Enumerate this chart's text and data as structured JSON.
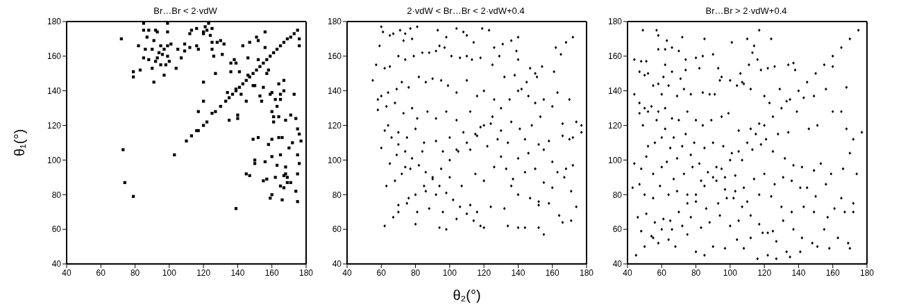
{
  "chart_data": [
    {
      "type": "scatter",
      "title": "Br…Br < 2·vdW",
      "ylabel": "θ₁(°)",
      "color": "#000000",
      "marker": "square",
      "xlim": [
        40,
        180
      ],
      "ylim": [
        40,
        180
      ],
      "xticks": [
        40,
        60,
        80,
        100,
        120,
        140,
        160,
        180
      ],
      "yticks": [
        40,
        60,
        80,
        100,
        120,
        140,
        160,
        180
      ],
      "x": [
        110,
        113,
        117,
        120,
        122,
        125,
        127,
        130,
        133,
        135,
        137,
        139,
        141,
        143,
        145,
        147,
        149,
        151,
        153,
        155,
        157,
        159,
        161,
        163,
        165,
        167,
        169,
        171,
        173,
        175,
        85,
        99,
        72,
        85,
        88,
        92,
        93,
        99,
        87,
        91,
        82,
        86,
        90,
        95,
        97,
        99,
        101,
        94,
        93,
        85,
        88,
        92,
        96,
        99,
        100,
        98,
        95,
        90,
        83,
        79,
        79,
        91,
        97,
        104,
        105,
        107,
        109,
        109,
        112,
        112,
        113,
        116,
        116,
        117,
        120,
        121,
        122,
        123,
        125,
        124,
        120,
        125,
        125,
        126,
        128,
        130,
        131,
        132,
        127,
        117,
        120,
        120,
        116,
        103,
        73,
        74,
        79,
        138,
        139,
        141,
        143,
        136,
        136,
        139,
        134,
        135,
        140,
        140,
        142,
        145,
        146,
        146,
        147,
        149,
        150,
        151,
        152,
        152,
        153,
        154,
        155,
        156,
        156,
        157,
        158,
        159,
        160,
        160,
        161,
        162,
        161,
        164,
        163,
        164,
        165,
        165,
        167,
        167,
        168,
        171,
        173,
        174,
        175,
        176,
        172,
        170,
        175,
        176,
        177,
        176,
        176,
        174,
        175,
        166,
        164,
        160,
        158,
        156,
        150,
        150,
        149,
        145,
        147,
        155,
        157,
        159,
        160,
        162,
        163,
        165,
        165,
        168,
        168,
        169,
        167,
        169,
        171,
        167,
        166,
        139,
        160,
        175,
        152
      ],
      "values": [
        111,
        114,
        117,
        120,
        122,
        127,
        128,
        131,
        134,
        136,
        138,
        140,
        142,
        144,
        146,
        148,
        150,
        152,
        154,
        156,
        158,
        160,
        162,
        164,
        166,
        168,
        170,
        171,
        173,
        175,
        179,
        179,
        170,
        175,
        175,
        175,
        174,
        174,
        171,
        169,
        166,
        164,
        164,
        166,
        164,
        166,
        167,
        162,
        159,
        159,
        158,
        157,
        161,
        160,
        157,
        155,
        155,
        153,
        152,
        151,
        148,
        145,
        149,
        153,
        164,
        159,
        167,
        163,
        165,
        173,
        175,
        176,
        166,
        164,
        174,
        177,
        175,
        179,
        176,
        172,
        173,
        168,
        164,
        160,
        168,
        169,
        161,
        167,
        150,
        128,
        145,
        134,
        117,
        103,
        106,
        87,
        79,
        158,
        156,
        151,
        166,
        156,
        151,
        141,
        139,
        123,
        126,
        124,
        138,
        134,
        149,
        159,
        168,
        143,
        143,
        171,
        169,
        158,
        137,
        134,
        142,
        174,
        165,
        150,
        152,
        138,
        139,
        128,
        125,
        135,
        122,
        144,
        131,
        125,
        138,
        135,
        146,
        140,
        123,
        126,
        138,
        124,
        118,
        115,
        110,
        107,
        103,
        98,
        111,
        166,
        170,
        82,
        76,
        113,
        113,
        112,
        109,
        99,
        98,
        100,
        112,
        92,
        91,
        88,
        89,
        78,
        80,
        90,
        97,
        85,
        103,
        96,
        92,
        90,
        91,
        87,
        87,
        84,
        77,
        72,
        102,
        92,
        113
      ]
    },
    {
      "type": "scatter",
      "title": "2·vdW < Br…Br < 2·vdW+0.4",
      "xlabel": "θ₂(°)",
      "color": "#000000",
      "marker": "diamond",
      "xlim": [
        40,
        180
      ],
      "ylim": [
        40,
        180
      ],
      "xticks": [
        40,
        60,
        80,
        100,
        120,
        140,
        160,
        180
      ],
      "yticks": [
        40,
        60,
        80,
        100,
        120,
        140,
        160,
        180
      ],
      "x": [
        67,
        70,
        75,
        80,
        85,
        90,
        95,
        100,
        105,
        110,
        115,
        120,
        125,
        130,
        135,
        140,
        145,
        150,
        154,
        62,
        66,
        70,
        74,
        78,
        82,
        86,
        90,
        94,
        98,
        102,
        106,
        110,
        114,
        118,
        60,
        61,
        65,
        67,
        71,
        74,
        77,
        81,
        73,
        78,
        93,
        98,
        104,
        108,
        110,
        119,
        123,
        114,
        126,
        131,
        136,
        140,
        162,
        165,
        168,
        172,
        59,
        57,
        62,
        65,
        70,
        74,
        79,
        84,
        88,
        92,
        94,
        97,
        101,
        106,
        110,
        113,
        118,
        125,
        129,
        139,
        140,
        147,
        151,
        161,
        55,
        60,
        58,
        64,
        69,
        72,
        76,
        82,
        86,
        90,
        95,
        99,
        104,
        110,
        116,
        120,
        126,
        132,
        138,
        142,
        146,
        150,
        155,
        163,
        170,
        58,
        63,
        68,
        73,
        78,
        81,
        87,
        92,
        98,
        104,
        112,
        118,
        124,
        130,
        136,
        141,
        148,
        153,
        160,
        166,
        174,
        177,
        172,
        64,
        70,
        75,
        80,
        85,
        92,
        100,
        108,
        116,
        128,
        134,
        144,
        152,
        158,
        166,
        170,
        60,
        65,
        69,
        74,
        84,
        96,
        104,
        112,
        122,
        130,
        140,
        146,
        155,
        160,
        168,
        63,
        68,
        72,
        77,
        86,
        92,
        100,
        107,
        115,
        120,
        126,
        133,
        137,
        144,
        150,
        155,
        163,
        167,
        172,
        70,
        76,
        81,
        88,
        96,
        104,
        112,
        116,
        124,
        132,
        136,
        140,
        147,
        152,
        160,
        164,
        171,
        174,
        62,
        80,
        94,
        98,
        120,
        134,
        140,
        144,
        152,
        155,
        166,
        171,
        177,
        152,
        158
      ],
      "values": [
        67,
        70,
        75,
        80,
        85,
        90,
        95,
        100,
        105,
        110,
        115,
        120,
        125,
        130,
        135,
        140,
        145,
        150,
        154,
        117,
        113,
        109,
        105,
        101,
        97,
        93,
        89,
        85,
        81,
        77,
        73,
        69,
        65,
        62,
        177,
        174,
        172,
        173,
        175,
        173,
        176,
        177,
        169,
        170,
        175,
        171,
        176,
        174,
        172,
        176,
        175,
        168,
        165,
        167,
        169,
        171,
        165,
        161,
        168,
        171,
        166,
        155,
        153,
        154,
        160,
        158,
        160,
        162,
        162,
        163,
        166,
        165,
        160,
        159,
        160,
        158,
        159,
        155,
        160,
        163,
        158,
        153,
        148,
        151,
        146,
        137,
        135,
        139,
        141,
        145,
        142,
        148,
        145,
        147,
        146,
        143,
        139,
        146,
        137,
        140,
        135,
        148,
        149,
        141,
        137,
        133,
        135,
        139,
        135,
        129,
        131,
        133,
        127,
        130,
        124,
        128,
        124,
        128,
        123,
        128,
        119,
        121,
        117,
        122,
        118,
        120,
        125,
        131,
        121,
        122,
        120,
        113,
        120,
        116,
        113,
        118,
        110,
        111,
        113,
        116,
        114,
        112,
        110,
        112,
        109,
        111,
        114,
        112,
        107,
        98,
        103,
        96,
        105,
        105,
        106,
        106,
        108,
        102,
        101,
        104,
        106,
        99,
        95,
        85,
        88,
        92,
        95,
        82,
        80,
        90,
        85,
        92,
        88,
        96,
        95,
        89,
        93,
        95,
        87,
        93,
        90,
        97,
        74,
        78,
        70,
        72,
        70,
        66,
        74,
        70,
        73,
        72,
        85,
        80,
        78,
        74,
        84,
        68,
        82,
        73,
        62,
        63,
        61,
        60,
        61,
        62,
        61,
        61,
        61,
        57,
        64,
        65,
        116,
        76,
        75
      ]
    },
    {
      "type": "scatter",
      "title": "Br…Br > 2·vdW+0.4",
      "color": "#000000",
      "marker": "diamond",
      "xlim": [
        40,
        180
      ],
      "ylim": [
        40,
        180
      ],
      "xticks": [
        40,
        60,
        80,
        100,
        120,
        140,
        160,
        180
      ],
      "yticks": [
        40,
        60,
        80,
        100,
        120,
        140,
        160,
        180
      ],
      "x": [
        45,
        50,
        55,
        60,
        65,
        70,
        75,
        80,
        85,
        90,
        95,
        100,
        105,
        110,
        115,
        120,
        125,
        130,
        135,
        140,
        145,
        150,
        155,
        160,
        165,
        170,
        175,
        47,
        52,
        57,
        62,
        67,
        72,
        77,
        82,
        87,
        92,
        97,
        102,
        107,
        112,
        117,
        122,
        127,
        133,
        49,
        57,
        58,
        63,
        72,
        85,
        101,
        110,
        117,
        124,
        113,
        114,
        58,
        62,
        66,
        70,
        44,
        48,
        51,
        62,
        74,
        80,
        84,
        82,
        90,
        95,
        94,
        93,
        100,
        106,
        107,
        108,
        111,
        116,
        118,
        122,
        126,
        134,
        138,
        137,
        47,
        50,
        52,
        55,
        58,
        61,
        66,
        71,
        74,
        60,
        64,
        69,
        73,
        77,
        84,
        88,
        91,
        104,
        112,
        120,
        123,
        129,
        133,
        143,
        149,
        156,
        160,
        168,
        44,
        47,
        50,
        54,
        58,
        62,
        66,
        70,
        75,
        80,
        84,
        89,
        95,
        99,
        105,
        112,
        117,
        121,
        128,
        134,
        139,
        146,
        151,
        160,
        165,
        168,
        172,
        177,
        49,
        52,
        56,
        60,
        65,
        69,
        74,
        79,
        85,
        90,
        96,
        101,
        107,
        113,
        118,
        125,
        132,
        137,
        142,
        149,
        153,
        159,
        166,
        170,
        174,
        44,
        48,
        51,
        55,
        60,
        63,
        67,
        73,
        78,
        83,
        92,
        97,
        103,
        108,
        114,
        120,
        126,
        131,
        136,
        141,
        145,
        150,
        156,
        165,
        172,
        43,
        47,
        50,
        55,
        59,
        64,
        69,
        75,
        80,
        86,
        93,
        98,
        103,
        110,
        117,
        124,
        130,
        136,
        143,
        149,
        157,
        161,
        167,
        172,
        46,
        51,
        56,
        61,
        66,
        72,
        77,
        83,
        88,
        94,
        100,
        105,
        112,
        119,
        125,
        131,
        137,
        142,
        148,
        155,
        163,
        169,
        48,
        54,
        58,
        64,
        68,
        75,
        80,
        85,
        90,
        97,
        104,
        108,
        116,
        122,
        127,
        135,
        141,
        151,
        158,
        170
      ],
      "values": [
        45,
        50,
        55,
        60,
        65,
        70,
        75,
        80,
        85,
        90,
        95,
        100,
        105,
        110,
        115,
        120,
        125,
        130,
        135,
        140,
        145,
        150,
        155,
        160,
        165,
        170,
        175,
        133,
        128,
        123,
        118,
        113,
        108,
        103,
        98,
        93,
        88,
        83,
        78,
        73,
        68,
        63,
        58,
        53,
        47,
        175,
        175,
        172,
        169,
        171,
        170,
        168,
        170,
        175,
        170,
        162,
        166,
        164,
        164,
        165,
        163,
        158,
        157,
        157,
        155,
        158,
        159,
        160,
        153,
        161,
        148,
        146,
        153,
        146,
        150,
        145,
        144,
        155,
        158,
        152,
        153,
        154,
        155,
        152,
        156,
        151,
        149,
        150,
        143,
        144,
        148,
        151,
        147,
        152,
        138,
        143,
        137,
        141,
        138,
        139,
        138,
        138,
        143,
        141,
        137,
        133,
        141,
        134,
        136,
        137,
        141,
        154,
        142,
        138,
        127,
        130,
        131,
        128,
        130,
        124,
        123,
        128,
        123,
        120,
        123,
        125,
        127,
        117,
        118,
        121,
        112,
        115,
        116,
        128,
        118,
        120,
        128,
        128,
        118,
        112,
        116,
        120,
        108,
        110,
        113,
        107,
        101,
        115,
        110,
        107,
        110,
        108,
        104,
        100,
        106,
        109,
        105,
        101,
        97,
        96,
        94,
        98,
        92,
        95,
        104,
        92,
        98,
        95,
        102,
        92,
        96,
        99,
        89,
        92,
        96,
        88,
        96,
        90,
        91,
        84,
        89,
        92,
        86,
        90,
        88,
        84,
        84,
        79,
        86,
        78,
        75,
        84,
        86,
        80,
        78,
        85,
        80,
        82,
        80,
        76,
        72,
        75,
        78,
        82,
        76,
        80,
        79,
        73,
        70,
        73,
        70,
        67,
        72,
        70,
        70,
        67,
        69,
        64,
        66,
        60,
        62,
        67,
        61,
        64,
        68,
        62,
        65,
        55,
        58,
        59,
        65,
        60,
        55,
        52,
        60,
        55,
        52,
        59,
        56,
        52,
        54,
        50,
        57,
        47,
        45,
        50,
        49,
        54,
        49,
        43,
        45,
        43,
        44,
        47,
        50,
        49,
        49
      ]
    }
  ]
}
